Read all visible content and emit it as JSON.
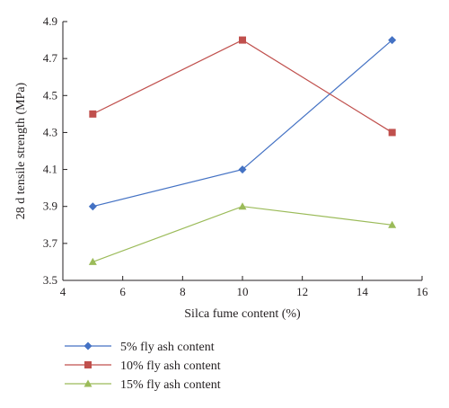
{
  "chart_data": {
    "type": "line",
    "title": "",
    "xlabel": "Silca fume content (%)",
    "ylabel": "28 d tensile strength (MPa)",
    "xlim": [
      4,
      16
    ],
    "ylim": [
      3.5,
      4.9
    ],
    "xticks": [
      4,
      6,
      8,
      10,
      12,
      14,
      16
    ],
    "yticks": [
      3.5,
      3.7,
      3.9,
      4.1,
      4.3,
      4.5,
      4.7,
      4.9
    ],
    "x": [
      5,
      10,
      15
    ],
    "grid": false,
    "legend_position": "bottom",
    "series": [
      {
        "name": "5% fly ash content",
        "values": [
          3.9,
          4.1,
          4.8
        ],
        "color": "#4472c4",
        "marker": "diamond"
      },
      {
        "name": "10% fly ash content",
        "values": [
          4.4,
          4.8,
          4.3
        ],
        "color": "#c0504d",
        "marker": "square"
      },
      {
        "name": "15% fly ash content",
        "values": [
          3.6,
          3.9,
          3.8
        ],
        "color": "#9bbb59",
        "marker": "triangle"
      }
    ]
  }
}
